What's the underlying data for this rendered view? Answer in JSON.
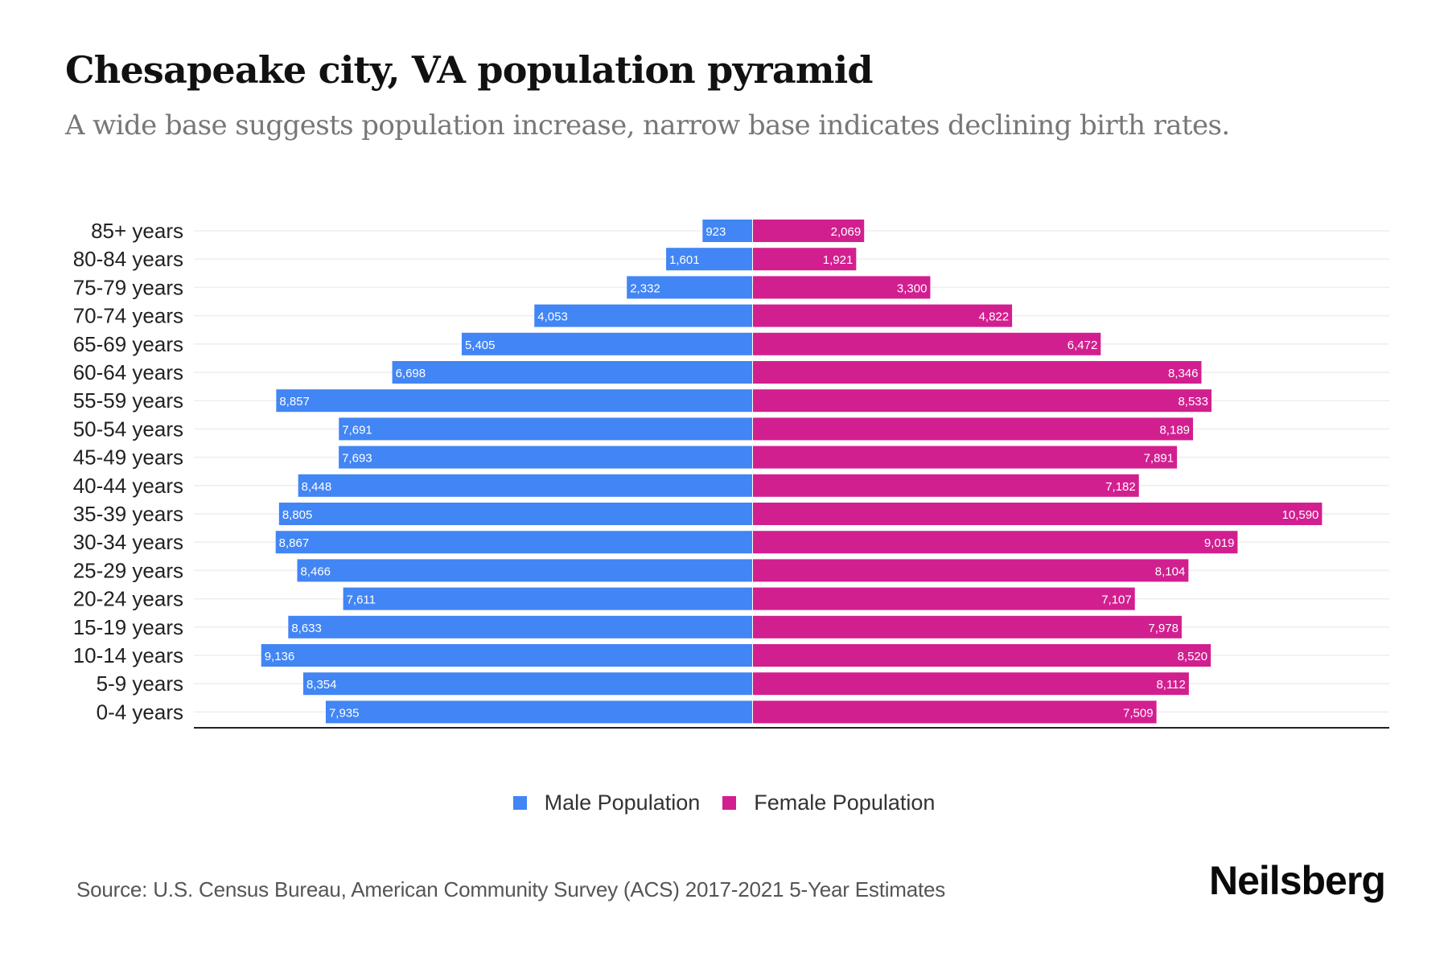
{
  "header": {
    "title": "Chesapeake city, VA population pyramid",
    "subtitle": "A wide base suggests population increase, narrow base indicates declining birth rates."
  },
  "legend": [
    {
      "label": "Male Population",
      "color": "#4285f4"
    },
    {
      "label": "Female Population",
      "color": "#d21f8f"
    }
  ],
  "footer": {
    "source": "Source: U.S. Census Bureau, American Community Survey (ACS) 2017-2021 5-Year Estimates",
    "brand": "Neilsberg"
  },
  "chart_data": {
    "type": "bar",
    "orientation": "horizontal-diverging",
    "title": "Chesapeake city, VA population pyramid",
    "subtitle": "A wide base suggests population increase, narrow base indicates declining birth rates.",
    "xlabel": "",
    "ylabel": "",
    "grid": true,
    "legend_position": "bottom-center",
    "categories": [
      "85+ years",
      "80-84 years",
      "75-79 years",
      "70-74 years",
      "65-69 years",
      "60-64 years",
      "55-59 years",
      "50-54 years",
      "45-49 years",
      "40-44 years",
      "35-39 years",
      "30-34 years",
      "25-29 years",
      "20-24 years",
      "15-19 years",
      "10-14 years",
      "5-9 years",
      "0-4 years"
    ],
    "series": [
      {
        "name": "Male Population",
        "color": "#4285f4",
        "side": "left",
        "values": [
          923,
          1601,
          2332,
          4053,
          5405,
          6698,
          8857,
          7691,
          7693,
          8448,
          8805,
          8867,
          8466,
          7611,
          8633,
          9136,
          8354,
          7935
        ],
        "labels": [
          "923",
          "1,601",
          "2,332",
          "4,053",
          "5,405",
          "6,698",
          "8,857",
          "7,691",
          "7,693",
          "8,448",
          "8,805",
          "8,867",
          "8,466",
          "7,611",
          "8,633",
          "9,136",
          "8,354",
          "7,935"
        ]
      },
      {
        "name": "Female Population",
        "color": "#d21f8f",
        "side": "right",
        "values": [
          2069,
          1921,
          3300,
          4822,
          6472,
          8346,
          8533,
          8189,
          7891,
          7182,
          10590,
          9019,
          8104,
          7107,
          7978,
          8520,
          8112,
          7509
        ],
        "labels": [
          "2,069",
          "1,921",
          "3,300",
          "4,822",
          "6,472",
          "8,346",
          "8,533",
          "8,189",
          "7,891",
          "7,182",
          "10,590",
          "9,019",
          "8,104",
          "7,107",
          "7,978",
          "8,520",
          "8,112",
          "7,509"
        ]
      }
    ]
  }
}
